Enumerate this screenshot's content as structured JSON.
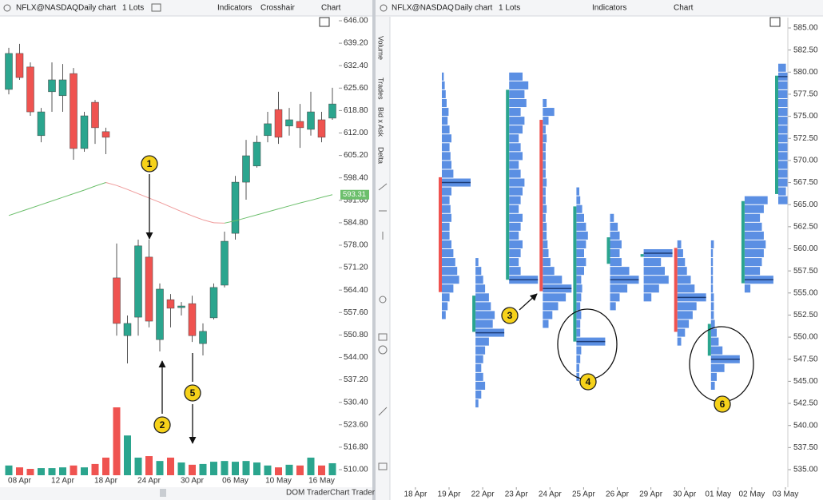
{
  "toolbars": [
    {
      "symbol": "NFLX@NASDAQ",
      "interval": "Daily chart",
      "lots": "1 Lots",
      "indicators": "Indicators",
      "crosshair": "Crosshair",
      "chart": "Chart"
    },
    {
      "symbol": "NFLX@NASDAQ",
      "interval": "Daily chart",
      "lots": "1 Lots",
      "indicators": "Indicators",
      "chart": "Chart"
    }
  ],
  "sidebar_tabs": [
    "Volume",
    "Trades",
    "Bid x Ask",
    "Delta"
  ],
  "footer": {
    "dom_trader": "DOM Trader",
    "chart_trader": "Chart Trader"
  },
  "annotations": [
    "1",
    "2",
    "3",
    "4",
    "5",
    "6"
  ],
  "chart_data": [
    {
      "type": "candlestick",
      "categories": [
        null,
        "08 Apr",
        null,
        null,
        null,
        "12 Apr",
        null,
        null,
        null,
        "18 Apr",
        null,
        null,
        null,
        "24 Apr",
        null,
        null,
        null,
        "30 Apr",
        null,
        null,
        null,
        "06 May",
        null,
        null,
        null,
        "10 May",
        null,
        null,
        null,
        "16 May",
        null
      ],
      "open": [
        625.2,
        636.1,
        632.0,
        611.2,
        624.5,
        623.3,
        630.0,
        607.3,
        621.3,
        612.4,
        568.1,
        550.6,
        556.2,
        574.4,
        549.4,
        561.5,
        559.1,
        560.3,
        548.2,
        556.0,
        565.9,
        581.6,
        597.1,
        602.0,
        611.2,
        619.1,
        614.1,
        615.5,
        613.1,
        616.0,
        616.5
      ],
      "high": [
        637.8,
        639.0,
        633.4,
        619.6,
        633.4,
        632.9,
        631.7,
        618.4,
        622.0,
        613.6,
        578.5,
        556.7,
        579.7,
        579.7,
        566.4,
        563.2,
        560.8,
        562.7,
        554.3,
        566.4,
        582.1,
        599.0,
        609.9,
        611.2,
        618.4,
        624.5,
        619.6,
        620.8,
        624.5,
        618.4,
        625.7
      ],
      "low": [
        623.7,
        628.1,
        617.2,
        609.2,
        618.4,
        618.4,
        603.9,
        606.3,
        608.7,
        605.6,
        550.6,
        542.2,
        550.6,
        553.1,
        545.8,
        553.1,
        556.7,
        548.7,
        544.6,
        555.5,
        565.2,
        579.7,
        591.8,
        601.5,
        609.2,
        608.7,
        611.2,
        607.5,
        611.2,
        609.2,
        616.0
      ],
      "close": [
        636.1,
        628.8,
        618.4,
        618.4,
        628.1,
        628.1,
        607.3,
        617.2,
        613.6,
        610.7,
        554.3,
        554.3,
        577.8,
        555.0,
        564.7,
        558.9,
        559.6,
        550.6,
        551.9,
        565.2,
        579.2,
        597.1,
        605.1,
        609.2,
        614.8,
        610.7,
        616.0,
        613.6,
        618.4,
        610.7,
        620.8
      ],
      "volume": [
        2.6,
        2.1,
        1.7,
        1.9,
        1.9,
        2.1,
        2.6,
        2.1,
        3.0,
        4.7,
        18.1,
        10.6,
        4.7,
        5.1,
        3.8,
        4.7,
        3.4,
        2.8,
        3.0,
        3.6,
        3.8,
        3.6,
        3.8,
        3.4,
        2.6,
        2.1,
        2.8,
        2.6,
        4.7,
        2.6,
        3.2
      ],
      "up_color": "#2ba58e",
      "down_color": "#ef5350",
      "moving_average": {
        "up_color": "#6cbf6c",
        "down_color": "#ef9a9a",
        "values": [
          587.0,
          588.1,
          589.2,
          590.3,
          591.4,
          592.5,
          593.6,
          594.7,
          595.9,
          597.0,
          596.1,
          594.9,
          593.6,
          592.3,
          591.0,
          589.6,
          588.2,
          586.9,
          585.7,
          584.8,
          584.7,
          585.4,
          586.3,
          587.2,
          588.1,
          589.0,
          589.9,
          590.8,
          591.6,
          592.5,
          593.31
        ]
      },
      "ylim": [
        510,
        646
      ],
      "yticks": [
        {
          "value": 646,
          "label": "646.00"
        },
        {
          "value": 639.2,
          "label": "639.20"
        },
        {
          "value": 632.4,
          "label": "632.40"
        },
        {
          "value": 625.6,
          "label": "625.60"
        },
        {
          "value": 618.8,
          "label": "618.80"
        },
        {
          "value": 612,
          "label": "612.00"
        },
        {
          "value": 605.2,
          "label": "605.20"
        },
        {
          "value": 598.4,
          "label": "598.40"
        },
        {
          "value": 591.6,
          "label": "591.60"
        },
        {
          "value": 584.8,
          "label": "584.80"
        },
        {
          "value": 578,
          "label": "578.00"
        },
        {
          "value": 571.2,
          "label": "571.20"
        },
        {
          "value": 564.4,
          "label": "564.40"
        },
        {
          "value": 557.6,
          "label": "557.60"
        },
        {
          "value": 550.8,
          "label": "550.80"
        },
        {
          "value": 544,
          "label": "544.00"
        },
        {
          "value": 537.2,
          "label": "537.20"
        },
        {
          "value": 530.4,
          "label": "530.40"
        },
        {
          "value": 523.6,
          "label": "523.60"
        },
        {
          "value": 516.8,
          "label": "516.80"
        },
        {
          "value": 510,
          "label": "510.00"
        }
      ]
    },
    {
      "type": "volume-profile",
      "categories": [
        "18 Apr",
        "19 Apr",
        "22 Apr",
        "23 Apr",
        "24 Apr",
        "25 Apr",
        "26 Apr",
        "29 Apr",
        "30 Apr",
        "01 May",
        "02 May",
        "03 May"
      ],
      "open": [
        null,
        568.1,
        550.6,
        556.5,
        574.6,
        549.5,
        558.3,
        559.1,
        560.1,
        547.9,
        556.1,
        566.2
      ],
      "close": [
        null,
        555.1,
        554.7,
        578.0,
        555.2,
        564.8,
        561.3,
        559.4,
        550.6,
        551.5,
        565.4,
        579.6
      ],
      "up_color": "#2ba58e",
      "down_color": "#ef5350",
      "profile_color": "#5b8fe3",
      "poc_color": "#1d3d78",
      "bins": [
        542,
        543,
        544,
        545,
        546,
        547,
        548,
        549,
        550,
        551,
        552,
        553,
        554,
        555,
        556,
        557,
        558,
        559,
        560,
        561,
        562,
        563,
        564,
        565,
        566,
        567,
        568,
        569,
        570,
        571,
        572,
        573,
        574,
        575,
        576,
        577,
        578,
        579,
        580,
        581
      ],
      "volumes": [
        [
          null,
          null,
          null,
          null,
          null,
          null,
          null,
          null,
          null,
          null,
          null,
          null,
          null,
          null,
          null,
          null,
          null,
          null,
          null,
          null,
          null,
          null,
          null,
          null,
          null,
          null,
          null,
          null,
          null,
          null,
          null,
          null,
          null,
          null,
          null,
          null,
          null,
          null,
          null
        ],
        [
          null,
          null,
          null,
          null,
          null,
          null,
          null,
          null,
          null,
          null,
          4,
          6,
          8,
          12,
          18,
          16,
          14,
          12,
          10,
          8,
          8,
          10,
          9,
          8,
          10,
          30,
          12,
          10,
          9,
          8,
          10,
          8,
          6,
          7,
          5,
          4,
          3,
          2,
          null
        ],
        [
          3,
          6,
          10,
          8,
          6,
          8,
          10,
          14,
          30,
          18,
          20,
          16,
          14,
          10,
          8,
          6,
          3,
          null,
          null,
          null,
          null,
          null,
          null,
          null,
          null,
          null,
          null,
          null,
          null,
          null,
          null,
          null,
          null,
          null,
          null,
          null,
          null,
          null,
          null
        ],
        [
          null,
          null,
          null,
          null,
          null,
          null,
          null,
          null,
          null,
          null,
          null,
          null,
          null,
          null,
          30,
          12,
          10,
          12,
          14,
          10,
          12,
          14,
          10,
          12,
          14,
          16,
          12,
          10,
          14,
          12,
          10,
          14,
          16,
          12,
          18,
          16,
          20,
          14,
          null
        ],
        [
          null,
          null,
          null,
          null,
          null,
          null,
          null,
          null,
          null,
          6,
          10,
          16,
          24,
          30,
          20,
          12,
          8,
          6,
          5,
          4,
          4,
          3,
          4,
          3,
          3,
          4,
          3,
          3,
          3,
          3,
          4,
          3,
          6,
          12,
          4,
          null,
          null,
          null,
          null
        ],
        [
          null,
          null,
          null,
          3,
          3,
          4,
          5,
          30,
          4,
          4,
          5,
          4,
          5,
          6,
          5,
          8,
          10,
          8,
          10,
          12,
          10,
          8,
          6,
          4,
          3,
          null,
          null,
          null,
          null,
          null,
          null,
          null,
          null,
          null,
          null,
          null,
          null,
          null,
          null
        ],
        [
          null,
          null,
          null,
          null,
          null,
          null,
          null,
          null,
          null,
          null,
          null,
          6,
          10,
          18,
          30,
          20,
          12,
          10,
          12,
          10,
          8,
          4,
          null,
          null,
          null,
          null,
          null,
          null,
          null,
          null,
          null,
          null,
          null,
          null,
          null,
          null,
          null,
          null,
          null
        ],
        [
          null,
          null,
          null,
          null,
          null,
          null,
          null,
          null,
          null,
          null,
          null,
          null,
          8,
          16,
          26,
          22,
          18,
          30,
          null,
          null,
          null,
          null,
          null,
          null,
          null,
          null,
          null,
          null,
          null,
          null,
          null,
          null,
          null,
          null,
          null,
          null,
          null,
          null,
          null
        ],
        [
          null,
          null,
          null,
          null,
          null,
          null,
          null,
          4,
          8,
          12,
          16,
          20,
          30,
          18,
          14,
          10,
          8,
          6,
          4,
          null,
          null,
          null,
          null,
          null,
          null,
          null,
          null,
          null,
          null,
          null,
          null,
          null,
          null,
          null,
          null,
          null,
          null,
          null,
          null
        ],
        [
          null,
          null,
          4,
          6,
          14,
          30,
          12,
          8,
          6,
          4,
          3,
          3,
          3,
          2,
          2,
          2,
          2,
          2,
          3,
          null,
          null,
          null,
          null,
          null,
          null,
          null,
          null,
          null,
          null,
          null,
          null,
          null,
          null,
          null,
          null,
          null,
          null,
          null,
          null
        ],
        [
          null,
          null,
          null,
          null,
          null,
          null,
          null,
          null,
          null,
          null,
          null,
          null,
          null,
          6,
          30,
          16,
          18,
          20,
          22,
          20,
          18,
          16,
          20,
          24,
          null,
          null,
          null,
          null,
          null,
          null,
          null,
          null,
          null,
          null,
          null,
          null,
          null,
          null,
          null
        ],
        [
          null,
          null,
          null,
          null,
          null,
          null,
          null,
          null,
          null,
          null,
          null,
          null,
          null,
          null,
          null,
          null,
          null,
          null,
          null,
          null,
          null,
          null,
          null,
          18,
          8,
          10,
          12,
          14,
          12,
          16,
          14,
          12,
          16,
          14,
          12,
          10,
          14,
          30,
          8
        ]
      ],
      "ylim": [
        535,
        585
      ],
      "yticks": [
        {
          "value": 585,
          "label": "585.00"
        },
        {
          "value": 582.5,
          "label": "582.50"
        },
        {
          "value": 580,
          "label": "580.00"
        },
        {
          "value": 577.5,
          "label": "577.50"
        },
        {
          "value": 575,
          "label": "575.00"
        },
        {
          "value": 572.5,
          "label": "572.50"
        },
        {
          "value": 570,
          "label": "570.00"
        },
        {
          "value": 567.5,
          "label": "567.50"
        },
        {
          "value": 565,
          "label": "565.00"
        },
        {
          "value": 562.5,
          "label": "562.50"
        },
        {
          "value": 560,
          "label": "560.00"
        },
        {
          "value": 557.5,
          "label": "557.50"
        },
        {
          "value": 555,
          "label": "555.00"
        },
        {
          "value": 552.5,
          "label": "552.50"
        },
        {
          "value": 550,
          "label": "550.00"
        },
        {
          "value": 547.5,
          "label": "547.50"
        },
        {
          "value": 545,
          "label": "545.00"
        },
        {
          "value": 542.5,
          "label": "542.50"
        },
        {
          "value": 540,
          "label": "540.00"
        },
        {
          "value": 537.5,
          "label": "537.50"
        },
        {
          "value": 535,
          "label": "535.00"
        }
      ]
    }
  ]
}
